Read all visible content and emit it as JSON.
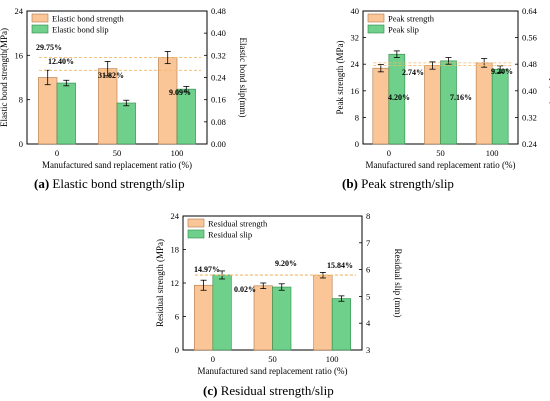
{
  "colors": {
    "strength": "#fbc697",
    "slip": "#6fd08b",
    "strength_edge": "#b07a4a",
    "slip_edge": "#2e8b4a",
    "guide": "#f3b968"
  },
  "chart_data": [
    {
      "type": "bar",
      "letter": "(a)",
      "caption": "Elastic bond strength/slip",
      "categories": [
        "0",
        "50",
        "100"
      ],
      "xlabel": "Manufactured sand replacement ratio  (%)",
      "ylabel": "Elastic bond strength(MPa)",
      "y2label": "Elastic bond slip(mm)",
      "ylim": [
        0,
        24
      ],
      "yticks": [
        0,
        8,
        16,
        24
      ],
      "y2lim": [
        0,
        0.48
      ],
      "y2ticks": [
        0.0,
        0.08,
        0.16,
        0.24,
        0.32,
        0.4,
        0.48
      ],
      "y2decimals": 2,
      "legend": "top-left",
      "series": [
        {
          "name": "Elastic bond strength",
          "values": [
            12.0,
            13.6,
            15.6
          ],
          "errors": [
            1.3,
            1.3,
            1.1
          ]
        },
        {
          "name": "Elastic bond slip",
          "values": [
            0.22,
            0.148,
            0.198
          ],
          "errors": [
            0.01,
            0.01,
            0.01
          ]
        }
      ],
      "annotations": [
        "29.75%",
        "12.40%",
        "31.82%",
        "9.09%"
      ]
    },
    {
      "type": "bar",
      "letter": "(b)",
      "caption": "Peak strength/slip",
      "categories": [
        "0",
        "50",
        "100"
      ],
      "xlabel": "Manufactured sand replacement ratio  (%)",
      "ylabel": "Peak strength (MPa)",
      "y2label": "Peak slip (mm)",
      "ylim": [
        0,
        40
      ],
      "yticks": [
        0,
        8,
        16,
        24,
        32,
        40
      ],
      "y2lim": [
        0.24,
        0.64
      ],
      "y2ticks": [
        0.24,
        0.32,
        0.4,
        0.48,
        0.56,
        0.64
      ],
      "y2decimals": 2,
      "legend": "top-left",
      "series": [
        {
          "name": "Peak strength",
          "values": [
            22.8,
            23.6,
            24.4
          ],
          "errors": [
            1.1,
            1.1,
            1.3
          ]
        },
        {
          "name": "Peak slip",
          "values": [
            0.51,
            0.49,
            0.465
          ],
          "errors": [
            0.01,
            0.01,
            0.01
          ]
        }
      ],
      "annotations": [
        "4.20%",
        "2.74%",
        "7.16%",
        "9.20%"
      ]
    },
    {
      "type": "bar",
      "letter": "(c)",
      "caption": "Residual strength/slip",
      "categories": [
        "0",
        "50",
        "100"
      ],
      "xlabel": "Manufactured sand replacement ratio  (%)",
      "ylabel": "Residual strength (MPa)",
      "y2label": "Residual slip (mm)",
      "ylim": [
        0,
        24
      ],
      "yticks": [
        0,
        6,
        12,
        18,
        24
      ],
      "y2lim": [
        3,
        8
      ],
      "y2ticks": [
        3,
        4,
        5,
        6,
        7,
        8
      ],
      "y2decimals": 0,
      "legend": "top-left",
      "series": [
        {
          "name": "Residual strength",
          "values": [
            11.6,
            11.5,
            13.4
          ],
          "errors": [
            0.9,
            0.5,
            0.5
          ]
        },
        {
          "name": "Residual slip",
          "values": [
            5.8,
            5.35,
            4.92
          ],
          "errors": [
            0.15,
            0.12,
            0.1
          ]
        }
      ],
      "annotations": [
        "14.97%",
        "0.02%",
        "9.20%",
        "15.84%"
      ]
    }
  ]
}
